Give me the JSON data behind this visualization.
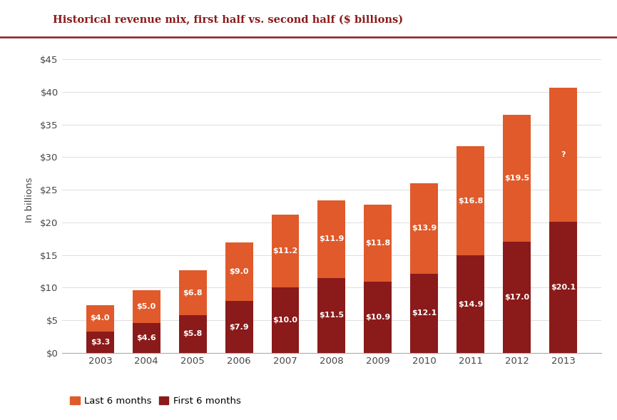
{
  "years": [
    "2003",
    "2004",
    "2005",
    "2006",
    "2007",
    "2008",
    "2009",
    "2010",
    "2011",
    "2012",
    "2013"
  ],
  "first_6_months": [
    3.3,
    4.6,
    5.8,
    7.9,
    10.0,
    11.5,
    10.9,
    12.1,
    14.9,
    17.0,
    20.1
  ],
  "last_6_months": [
    4.0,
    5.0,
    6.8,
    9.0,
    11.2,
    11.9,
    11.8,
    13.9,
    16.8,
    19.5,
    20.5
  ],
  "last_6_months_label": [
    "$4.0",
    "$5.0",
    "$6.8",
    "$9.0",
    "$11.2",
    "$11.9",
    "$11.8",
    "$13.9",
    "$16.8",
    "$19.5",
    "?"
  ],
  "first_6_months_label": [
    "$3.3",
    "$4.6",
    "$5.8",
    "$7.9",
    "$10.0",
    "$11.5",
    "$10.9",
    "$12.1",
    "$14.9",
    "$17.0",
    "$20.1"
  ],
  "color_last6": "#E05A2B",
  "color_first6": "#8B1A1A",
  "title": "Historical revenue mix, first half vs. second half ($ billions)",
  "title_color": "#8B1A1A",
  "ylabel": "In billions",
  "yticks": [
    0,
    5,
    10,
    15,
    20,
    25,
    30,
    35,
    40,
    45
  ],
  "ytick_labels": [
    "$0",
    "$5",
    "$10",
    "$15",
    "$20",
    "$25",
    "$30",
    "$35",
    "$40",
    "$45"
  ],
  "ylim": [
    0,
    47
  ],
  "legend_last6": "Last 6 months",
  "legend_first6": "First 6 months",
  "bg_color": "#FFFFFF",
  "bar_width": 0.6,
  "title_line_color": "#8B1A1A"
}
